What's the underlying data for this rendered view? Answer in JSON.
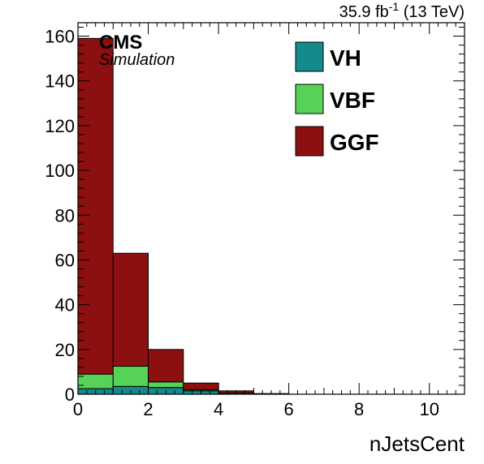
{
  "chart_data": {
    "type": "bar",
    "stacked": true,
    "histogram": true,
    "bin_edges": [
      0,
      1,
      2,
      3,
      4,
      5,
      6,
      7,
      8,
      9,
      10,
      11
    ],
    "series": [
      {
        "name": "VH",
        "color": "#148a8c",
        "values": [
          2.5,
          3.5,
          3,
          1.5,
          0.5,
          0.1,
          0,
          0,
          0,
          0,
          0
        ]
      },
      {
        "name": "VBF",
        "color": "#56d356",
        "values": [
          6.5,
          9,
          2.5,
          0.5,
          0,
          0,
          0,
          0,
          0,
          0,
          0
        ]
      },
      {
        "name": "GGF",
        "color": "#8c1010",
        "values": [
          150,
          50.5,
          14.5,
          3,
          1,
          0.2,
          0,
          0,
          0,
          0,
          0
        ]
      }
    ],
    "legend_order": [
      "VH",
      "VBF",
      "GGF"
    ],
    "xlabel": "nJetsCent",
    "ylabel": "",
    "xlim": [
      0,
      11
    ],
    "ylim": [
      0,
      166
    ],
    "xticks": [
      0,
      2,
      4,
      6,
      8,
      10
    ],
    "yticks": [
      0,
      20,
      40,
      60,
      80,
      100,
      120,
      140,
      160
    ],
    "legend_position": "top-right",
    "grid": false
  },
  "header": {
    "lumi_value": "35.9 fb",
    "lumi_sup": "-1",
    "lumi_energy": " (13 TeV)",
    "cms_label": "CMS",
    "sim_label": "Simulation"
  }
}
